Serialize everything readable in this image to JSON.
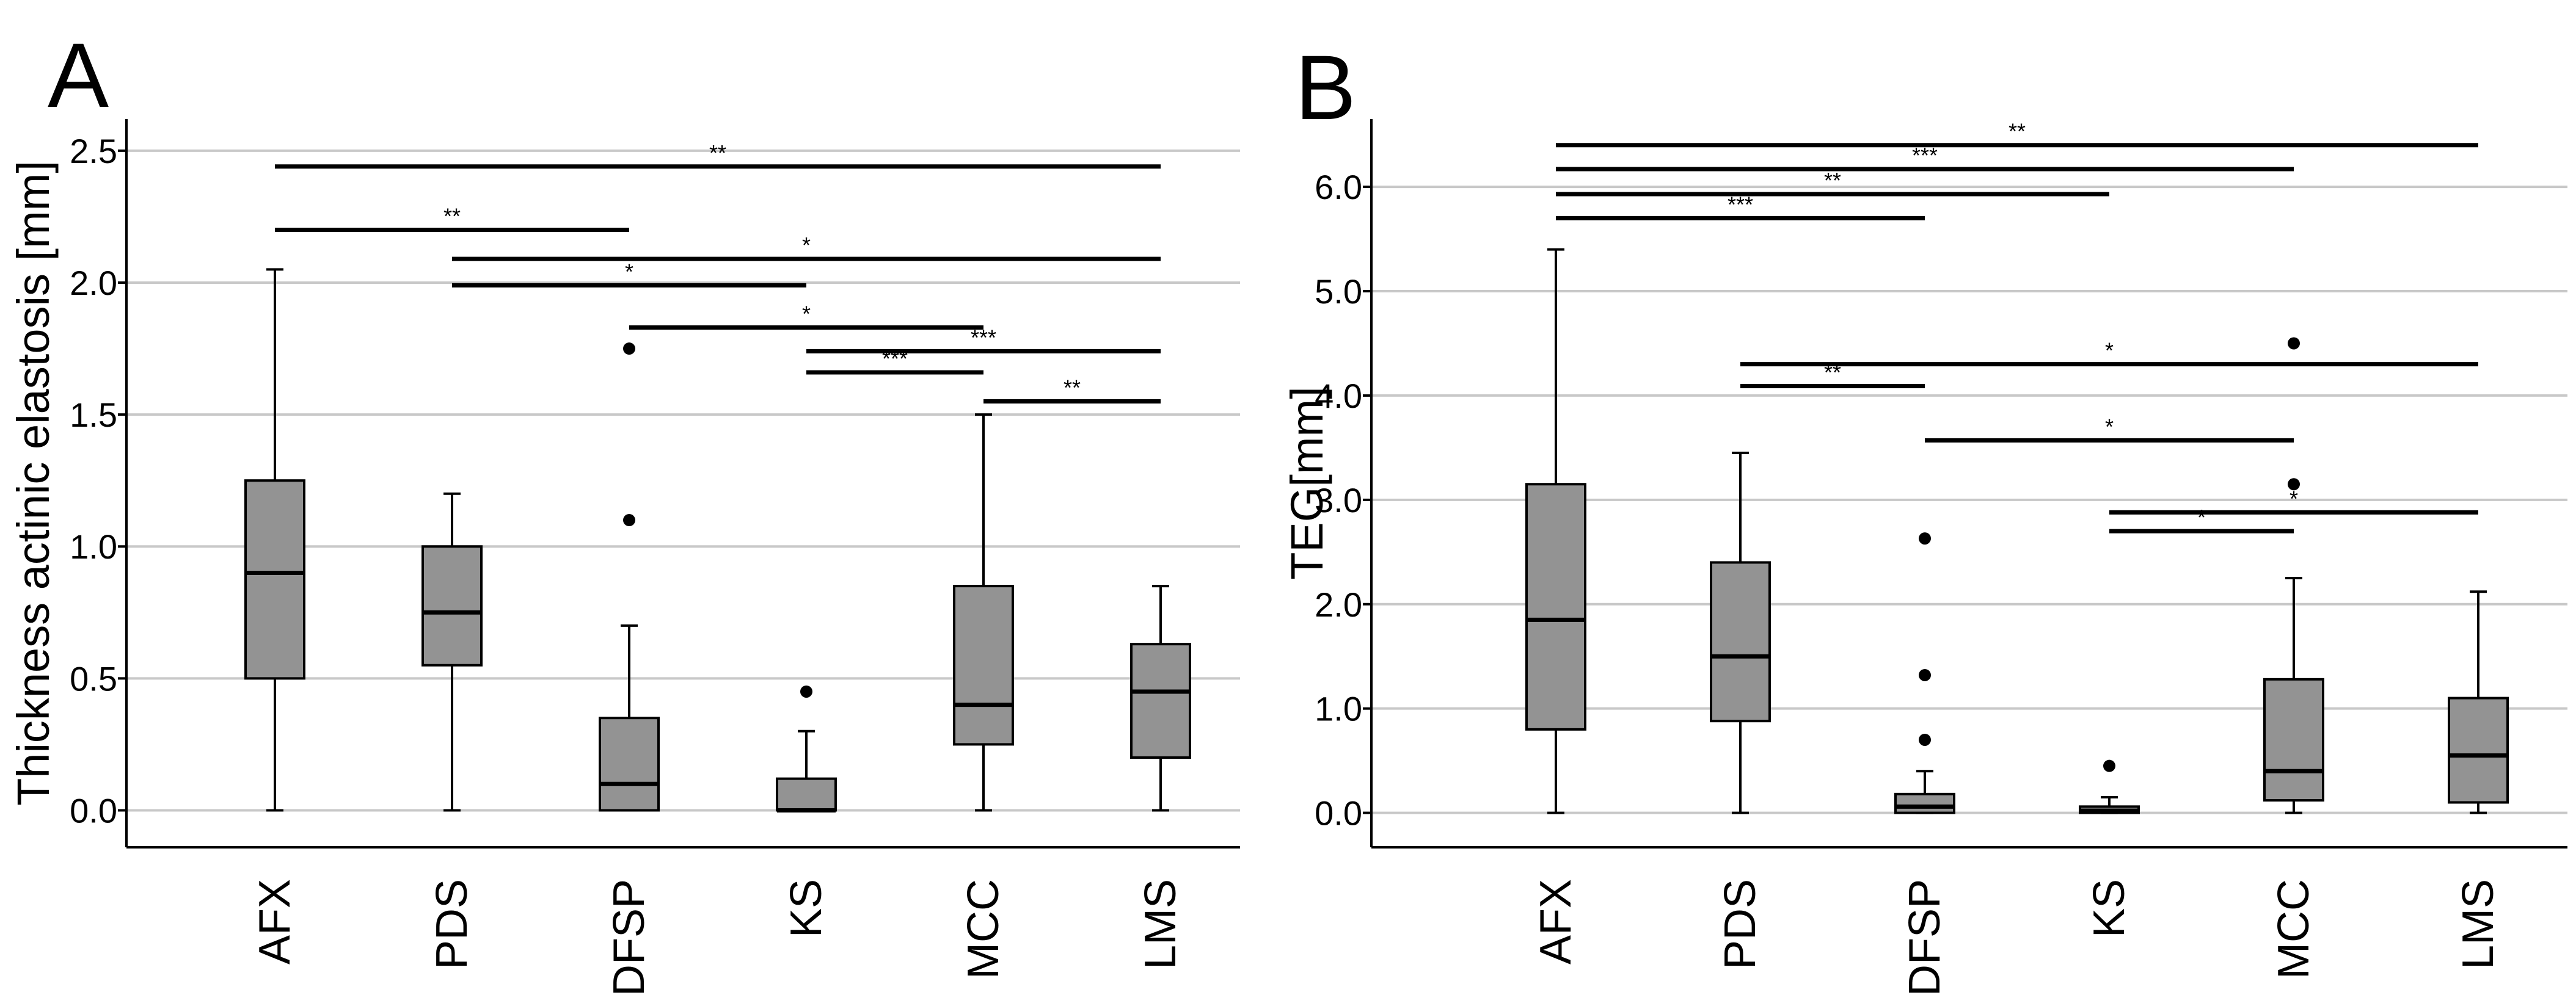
{
  "chart_data": [
    {
      "type": "box",
      "panel_label": "A",
      "ylabel": "Thickness actinic elastosis [mm]",
      "ylim": [
        -0.14,
        2.62
      ],
      "yticks": [
        0.0,
        0.5,
        1.0,
        1.5,
        2.0,
        2.5
      ],
      "ytick_labels": [
        "0.0",
        "0.5",
        "1.0",
        "1.5",
        "2.0",
        "2.5"
      ],
      "grid": true,
      "categories": [
        "AFX",
        "PDS",
        "DFSP",
        "KS",
        "MCC",
        "LMS"
      ],
      "boxes": [
        {
          "category": "AFX",
          "min": 0.0,
          "q1": 0.5,
          "median": 0.9,
          "q3": 1.25,
          "max": 2.05,
          "outliers": []
        },
        {
          "category": "PDS",
          "min": 0.0,
          "q1": 0.55,
          "median": 0.75,
          "q3": 1.0,
          "max": 1.2,
          "outliers": []
        },
        {
          "category": "DFSP",
          "min": 0.0,
          "q1": 0.0,
          "median": 0.1,
          "q3": 0.35,
          "max": 0.7,
          "outliers": [
            1.1,
            1.75
          ]
        },
        {
          "category": "KS",
          "min": 0.0,
          "q1": 0.0,
          "median": 0.0,
          "q3": 0.12,
          "max": 0.3,
          "outliers": [
            0.45
          ]
        },
        {
          "category": "MCC",
          "min": 0.0,
          "q1": 0.25,
          "median": 0.4,
          "q3": 0.85,
          "max": 1.5,
          "outliers": []
        },
        {
          "category": "LMS",
          "min": 0.0,
          "q1": 0.2,
          "median": 0.45,
          "q3": 0.63,
          "max": 0.85,
          "outliers": []
        }
      ],
      "significance": [
        {
          "from": "AFX",
          "to": "LMS",
          "y": 2.44,
          "label": "**"
        },
        {
          "from": "AFX",
          "to": "DFSP",
          "y": 2.2,
          "label": "**"
        },
        {
          "from": "PDS",
          "to": "LMS",
          "y": 2.09,
          "label": "*"
        },
        {
          "from": "PDS",
          "to": "KS",
          "y": 1.99,
          "label": "*"
        },
        {
          "from": "DFSP",
          "to": "MCC",
          "y": 1.83,
          "label": "*"
        },
        {
          "from": "KS",
          "to": "LMS",
          "y": 1.74,
          "label": "***"
        },
        {
          "from": "KS",
          "to": "MCC",
          "y": 1.66,
          "label": "***"
        },
        {
          "from": "MCC",
          "to": "LMS",
          "y": 1.55,
          "label": "**"
        }
      ]
    },
    {
      "type": "box",
      "panel_label": "B",
      "ylabel": "TEG[mm]",
      "ylim": [
        -0.33,
        6.65
      ],
      "yticks": [
        0.0,
        1.0,
        2.0,
        3.0,
        4.0,
        5.0,
        6.0
      ],
      "ytick_labels": [
        "0.0",
        "1.0",
        "2.0",
        "3.0",
        "4.0",
        "5.0",
        "6.0"
      ],
      "grid": true,
      "categories": [
        "AFX",
        "PDS",
        "DFSP",
        "KS",
        "MCC",
        "LMS"
      ],
      "boxes": [
        {
          "category": "AFX",
          "min": 0.0,
          "q1": 0.8,
          "median": 1.85,
          "q3": 3.15,
          "max": 5.4,
          "outliers": []
        },
        {
          "category": "PDS",
          "min": 0.0,
          "q1": 0.88,
          "median": 1.5,
          "q3": 2.4,
          "max": 3.45,
          "outliers": []
        },
        {
          "category": "DFSP",
          "min": 0.0,
          "q1": 0.0,
          "median": 0.06,
          "q3": 0.18,
          "max": 0.4,
          "outliers": [
            0.7,
            1.32,
            2.63
          ]
        },
        {
          "category": "KS",
          "min": 0.0,
          "q1": 0.0,
          "median": 0.02,
          "q3": 0.06,
          "max": 0.15,
          "outliers": [
            0.45
          ]
        },
        {
          "category": "MCC",
          "min": 0.0,
          "q1": 0.12,
          "median": 0.4,
          "q3": 1.28,
          "max": 2.25,
          "outliers": [
            3.15,
            4.5
          ]
        },
        {
          "category": "LMS",
          "min": 0.0,
          "q1": 0.1,
          "median": 0.55,
          "q3": 1.1,
          "max": 2.12,
          "outliers": []
        }
      ],
      "significance": [
        {
          "from": "AFX",
          "to": "LMS",
          "y": 6.4,
          "label": "**"
        },
        {
          "from": "AFX",
          "to": "MCC",
          "y": 6.17,
          "label": "***"
        },
        {
          "from": "AFX",
          "to": "KS",
          "y": 5.93,
          "label": "**"
        },
        {
          "from": "AFX",
          "to": "DFSP",
          "y": 5.7,
          "label": "***"
        },
        {
          "from": "PDS",
          "to": "LMS",
          "y": 4.3,
          "label": "*"
        },
        {
          "from": "PDS",
          "to": "DFSP",
          "y": 4.09,
          "label": "**"
        },
        {
          "from": "DFSP",
          "to": "MCC",
          "y": 3.57,
          "label": "*"
        },
        {
          "from": "KS",
          "to": "LMS",
          "y": 2.88,
          "label": "*"
        },
        {
          "from": "KS",
          "to": "MCC",
          "y": 2.7,
          "label": "*"
        }
      ]
    }
  ]
}
